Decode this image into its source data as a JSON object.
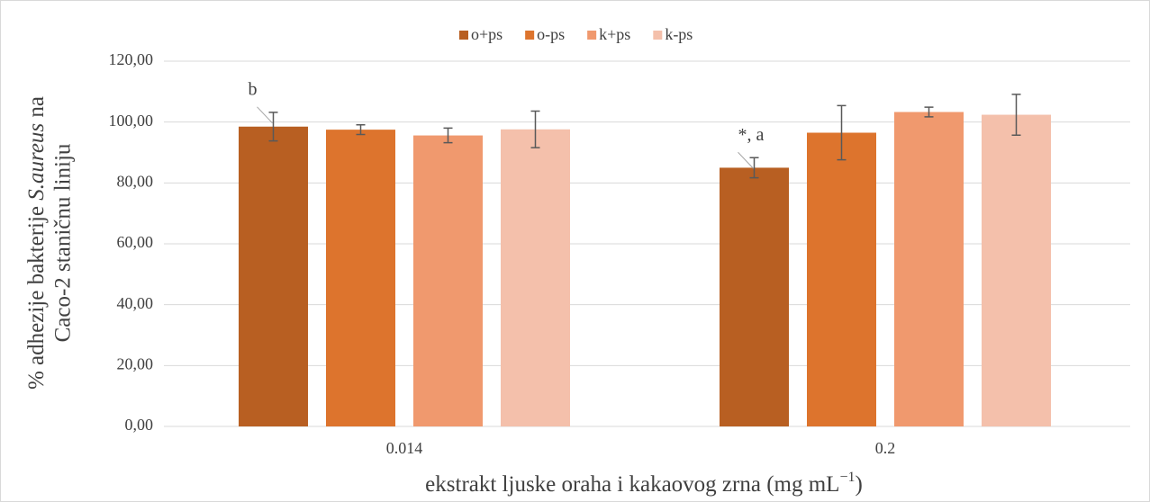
{
  "chart_data": {
    "type": "bar",
    "ylabel": {
      "line1": [
        "% adhezije bakterije ",
        "S.aureus",
        " na"
      ],
      "line2": "Caco-2 staničnu liniju"
    },
    "xlabel": [
      "ekstrakt ljuske oraha i kakaovog zrna (mg mL",
      "−1",
      ")"
    ],
    "categories": [
      "0.014",
      "0.2"
    ],
    "series": [
      {
        "name": "o+ps",
        "color": "#b85f22",
        "values": [
          98.5,
          85.0
        ],
        "errors": [
          4.7,
          3.3
        ]
      },
      {
        "name": "o-ps",
        "color": "#dd742d",
        "values": [
          97.5,
          96.5
        ],
        "errors": [
          1.6,
          8.9
        ]
      },
      {
        "name": "k+ps",
        "color": "#f0996e",
        "values": [
          95.6,
          103.3
        ],
        "errors": [
          2.4,
          1.6
        ]
      },
      {
        "name": "k-ps",
        "color": "#f4c0ab",
        "values": [
          97.6,
          102.4
        ],
        "errors": [
          6.0,
          6.7
        ]
      }
    ],
    "annotations": [
      {
        "text": "b"
      },
      {
        "text": "*, a"
      }
    ],
    "ylim": [
      0,
      120
    ],
    "yticks": [
      {
        "value": 0,
        "label": "0,00"
      },
      {
        "value": 20,
        "label": "20,00"
      },
      {
        "value": 40,
        "label": "40,00"
      },
      {
        "value": 60,
        "label": "60,00"
      },
      {
        "value": 80,
        "label": "80,00"
      },
      {
        "value": 100,
        "label": "100,00"
      },
      {
        "value": 120,
        "label": "120,00"
      }
    ],
    "grid": true,
    "legend": "top"
  }
}
